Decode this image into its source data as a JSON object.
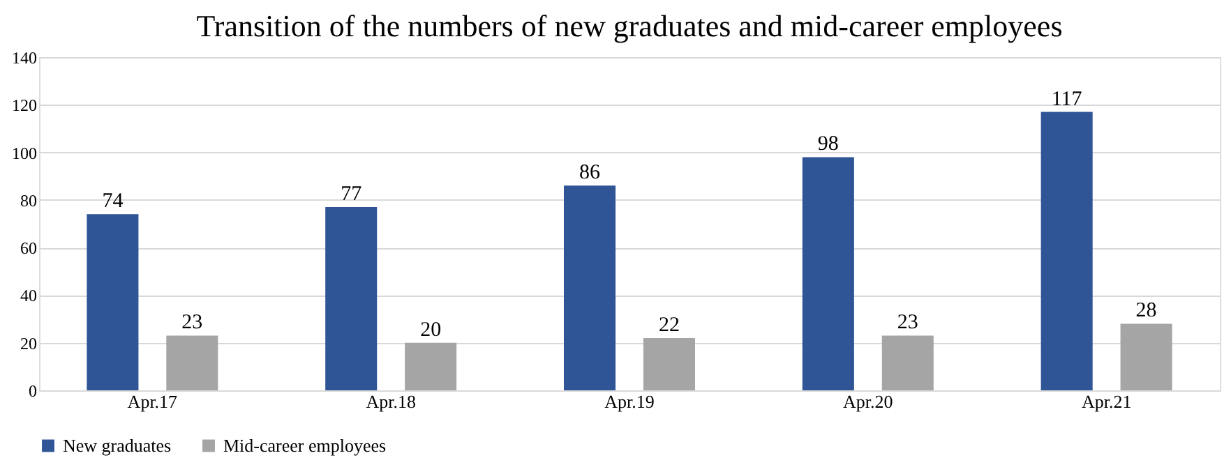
{
  "chart_data": {
    "type": "bar",
    "title": "Transition of the numbers of new graduates and mid-career employees",
    "categories": [
      "Apr.17",
      "Apr.18",
      "Apr.19",
      "Apr.20",
      "Apr.21"
    ],
    "series": [
      {
        "name": "New graduates",
        "color": "#2f5597",
        "values": [
          74,
          77,
          86,
          98,
          117
        ]
      },
      {
        "name": "Mid-career employees",
        "color": "#a5a5a5",
        "values": [
          23,
          20,
          22,
          23,
          28
        ]
      }
    ],
    "ylim": [
      0,
      140
    ],
    "yticks": [
      0,
      20,
      40,
      60,
      80,
      100,
      120,
      140
    ],
    "grid": "y",
    "legend": "bottom",
    "data_labels": true
  }
}
